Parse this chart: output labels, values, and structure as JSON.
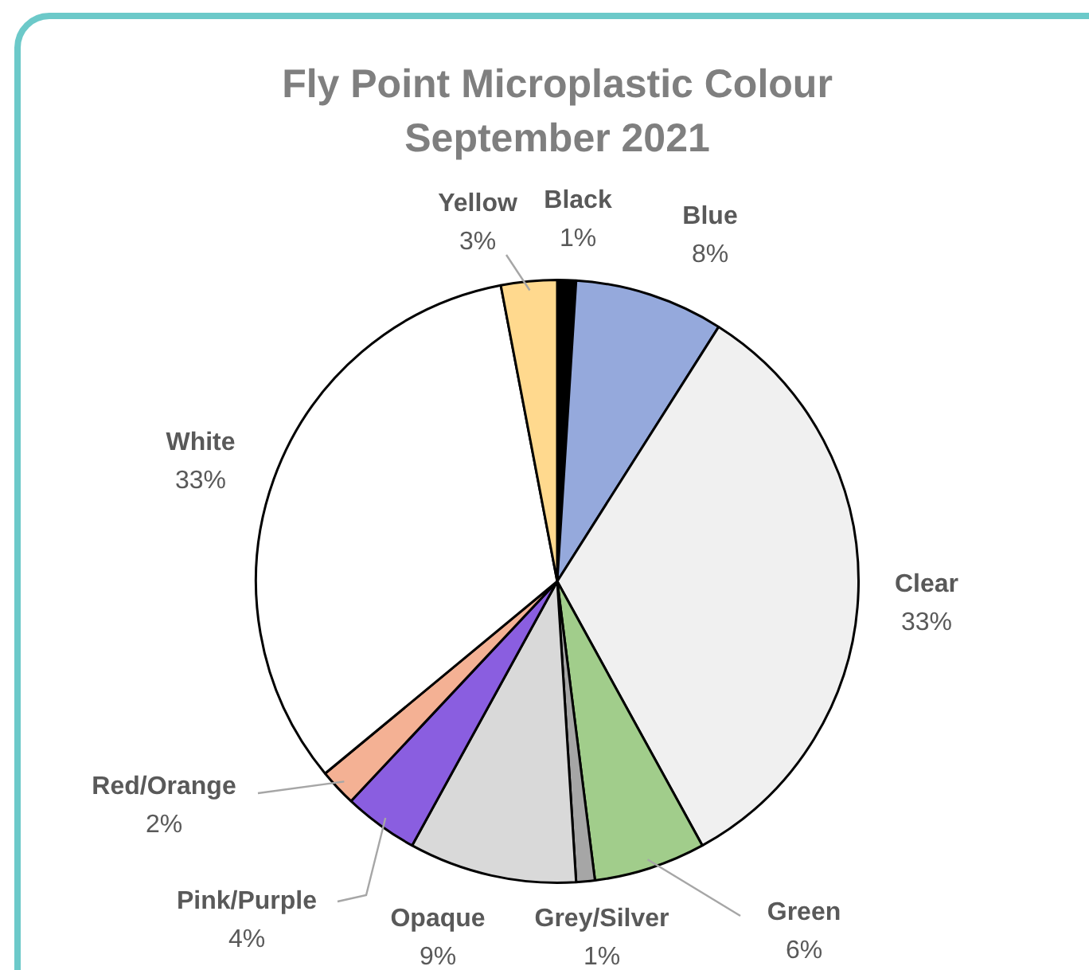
{
  "chart_data": {
    "type": "pie",
    "title": "Fly Point Microplastic Colour September 2021",
    "categories": [
      "Black",
      "Blue",
      "Clear",
      "Green",
      "Grey/Silver",
      "Opaque",
      "Pink/Purple",
      "Red/Orange",
      "White",
      "Yellow"
    ],
    "values": [
      1,
      8,
      33,
      6,
      1,
      9,
      4,
      2,
      33,
      3
    ],
    "colors": [
      "#000000",
      "#95a9dc",
      "#f0f0f0",
      "#a1cd8b",
      "#a6a6a6",
      "#d9d9d9",
      "#8a5ee0",
      "#f4b194",
      "#ffffff",
      "#ffd98e"
    ],
    "value_labels": [
      "1%",
      "8%",
      "33%",
      "6%",
      "1%",
      "9%",
      "4%",
      "2%",
      "33%",
      "3%"
    ]
  }
}
